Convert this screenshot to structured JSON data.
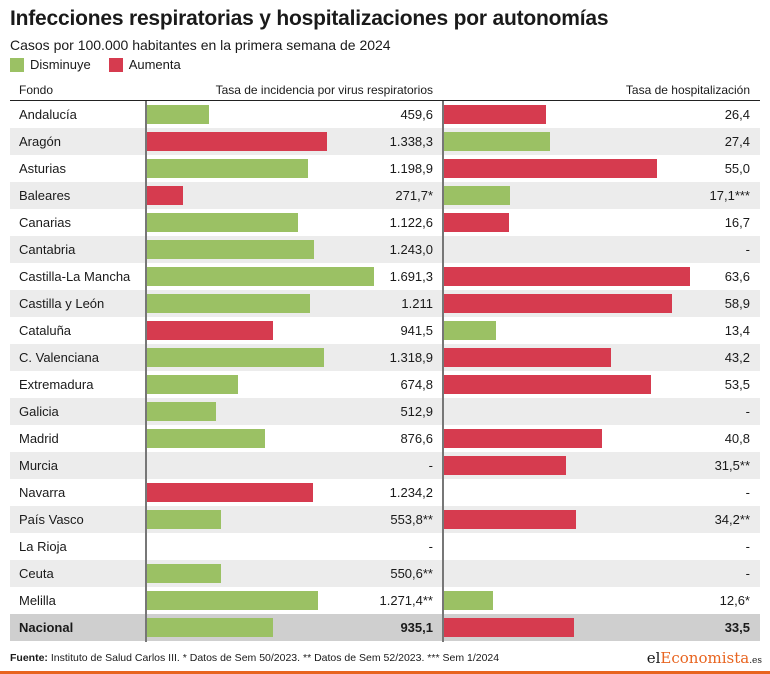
{
  "title": "Infecciones respiratorias y hospitalizaciones por autonomías",
  "subtitle": "Casos por 100.000 habitantes en la primera semana de 2024",
  "legend": {
    "decrease": "Disminuye",
    "increase": "Aumenta"
  },
  "colors": {
    "decrease": "#9bc164",
    "increase": "#d63b4f"
  },
  "headers": {
    "region": "Fondo",
    "incidence": "Tasa de incidencia por virus respiratorios",
    "hospital": "Tasa de hospitalización"
  },
  "footer": {
    "label": "Fuente:",
    "text": " Instituto de Salud Carlos III. * Datos de Sem 50/2023. ** Datos de Sem 52/2023. *** Sem 1/2024"
  },
  "logo": {
    "prefix": "el",
    "brand": "Economista",
    "suffix": ".es"
  },
  "chart_data": {
    "type": "bar",
    "incidence_title": "Tasa de incidencia por virus respiratorios",
    "hospital_title": "Tasa de hospitalización",
    "rows": [
      {
        "region": "Andalucía",
        "incidence": 459.6,
        "incidence_label": "459,6",
        "incidence_trend": "decrease",
        "hospital": 26.4,
        "hospital_label": "26,4",
        "hospital_trend": "increase"
      },
      {
        "region": "Aragón",
        "incidence": 1338.3,
        "incidence_label": "1.338,3",
        "incidence_trend": "increase",
        "hospital": 27.4,
        "hospital_label": "27,4",
        "hospital_trend": "decrease"
      },
      {
        "region": "Asturias",
        "incidence": 1198.9,
        "incidence_label": "1.198,9",
        "incidence_trend": "decrease",
        "hospital": 55.0,
        "hospital_label": "55,0",
        "hospital_trend": "increase"
      },
      {
        "region": "Baleares",
        "incidence": 271.7,
        "incidence_label": "271,7*",
        "incidence_trend": "increase",
        "hospital": 17.1,
        "hospital_label": "17,1***",
        "hospital_trend": "decrease"
      },
      {
        "region": "Canarias",
        "incidence": 1122.6,
        "incidence_label": "1.122,6",
        "incidence_trend": "decrease",
        "hospital": 16.7,
        "hospital_label": "16,7",
        "hospital_trend": "increase"
      },
      {
        "region": "Cantabria",
        "incidence": 1243.0,
        "incidence_label": "1.243,0",
        "incidence_trend": "decrease",
        "hospital": null,
        "hospital_label": "-",
        "hospital_trend": null
      },
      {
        "region": "Castilla-La Mancha",
        "incidence": 1691.3,
        "incidence_label": "1.691,3",
        "incidence_trend": "decrease",
        "hospital": 63.6,
        "hospital_label": "63,6",
        "hospital_trend": "increase"
      },
      {
        "region": "Castilla y León",
        "incidence": 1211,
        "incidence_label": "1.211",
        "incidence_trend": "decrease",
        "hospital": 58.9,
        "hospital_label": "58,9",
        "hospital_trend": "increase"
      },
      {
        "region": "Cataluña",
        "incidence": 941.5,
        "incidence_label": "941,5",
        "incidence_trend": "increase",
        "hospital": 13.4,
        "hospital_label": "13,4",
        "hospital_trend": "decrease"
      },
      {
        "region": "C. Valenciana",
        "incidence": 1318.9,
        "incidence_label": "1.318,9",
        "incidence_trend": "decrease",
        "hospital": 43.2,
        "hospital_label": "43,2",
        "hospital_trend": "increase"
      },
      {
        "region": "Extremadura",
        "incidence": 674.8,
        "incidence_label": "674,8",
        "incidence_trend": "decrease",
        "hospital": 53.5,
        "hospital_label": "53,5",
        "hospital_trend": "increase"
      },
      {
        "region": "Galicia",
        "incidence": 512.9,
        "incidence_label": "512,9",
        "incidence_trend": "decrease",
        "hospital": null,
        "hospital_label": "-",
        "hospital_trend": null
      },
      {
        "region": "Madrid",
        "incidence": 876.6,
        "incidence_label": "876,6",
        "incidence_trend": "decrease",
        "hospital": 40.8,
        "hospital_label": "40,8",
        "hospital_trend": "increase"
      },
      {
        "region": "Murcia",
        "incidence": null,
        "incidence_label": "-",
        "incidence_trend": null,
        "hospital": 31.5,
        "hospital_label": "31,5**",
        "hospital_trend": "increase"
      },
      {
        "region": "Navarra",
        "incidence": 1234.2,
        "incidence_label": "1.234,2",
        "incidence_trend": "increase",
        "hospital": null,
        "hospital_label": "-",
        "hospital_trend": null
      },
      {
        "region": "País Vasco",
        "incidence": 553.8,
        "incidence_label": "553,8**",
        "incidence_trend": "decrease",
        "hospital": 34.2,
        "hospital_label": "34,2**",
        "hospital_trend": "increase"
      },
      {
        "region": "La Rioja",
        "incidence": null,
        "incidence_label": "-",
        "incidence_trend": null,
        "hospital": null,
        "hospital_label": "-",
        "hospital_trend": null
      },
      {
        "region": "Ceuta",
        "incidence": 550.6,
        "incidence_label": "550,6**",
        "incidence_trend": "decrease",
        "hospital": null,
        "hospital_label": "-",
        "hospital_trend": null
      },
      {
        "region": "Melilla",
        "incidence": 1271.4,
        "incidence_label": "1.271,4**",
        "incidence_trend": "decrease",
        "hospital": 12.6,
        "hospital_label": "12,6*",
        "hospital_trend": "decrease"
      },
      {
        "region": "Nacional",
        "incidence": 935.1,
        "incidence_label": "935,1",
        "incidence_trend": "decrease",
        "hospital": 33.5,
        "hospital_label": "33,5",
        "hospital_trend": "increase",
        "total": true
      }
    ]
  }
}
